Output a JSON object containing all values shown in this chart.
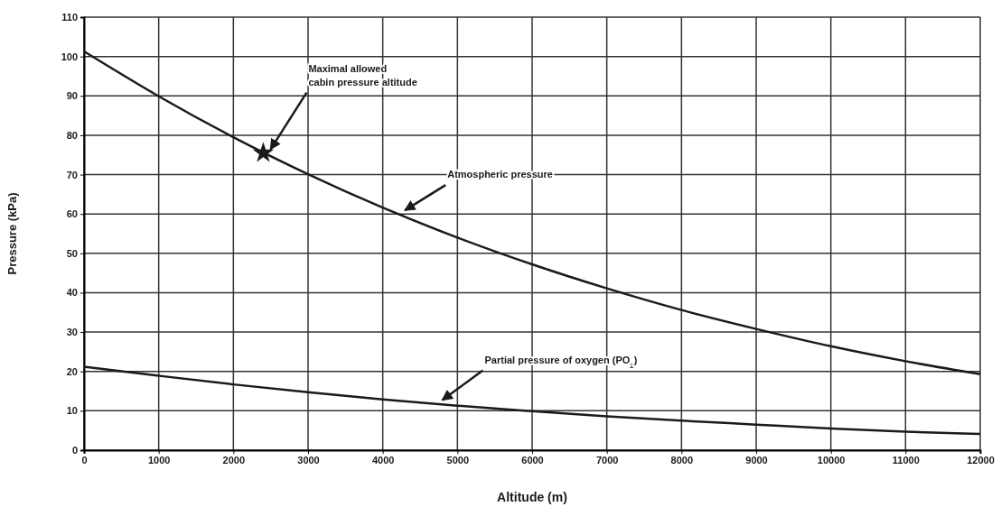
{
  "chart_data": {
    "type": "line",
    "xlabel": "Altitude (m)",
    "ylabel": "Pressure (kPa)",
    "x": [
      0,
      1000,
      2000,
      3000,
      4000,
      5000,
      6000,
      7000,
      8000,
      9000,
      10000,
      11000,
      12000
    ],
    "series": [
      {
        "color": "#1a1a1a",
        "values": [
          101.3,
          89.9,
          79.5,
          70.1,
          61.6,
          54.0,
          47.2,
          41.1,
          35.6,
          30.8,
          26.4,
          22.6,
          19.3
        ]
      },
      {
        "color": "#1a1a1a",
        "values": [
          21.2,
          18.9,
          16.7,
          14.7,
          12.9,
          11.3,
          9.9,
          8.6,
          7.5,
          6.5,
          5.5,
          4.7,
          4.1
        ]
      },
      {
        "type": "scatter",
        "marker": "star",
        "color": "#1a1a1a",
        "x": [
          2400
        ],
        "values": [
          75.5
        ]
      }
    ],
    "xlim": [
      0,
      12000
    ],
    "xticks": [
      0,
      1000,
      2000,
      3000,
      4000,
      5000,
      6000,
      7000,
      8000,
      9000,
      10000,
      11000,
      12000
    ],
    "ylim": [
      0,
      110
    ],
    "yticks": [
      0,
      10,
      20,
      30,
      40,
      50,
      60,
      70,
      80,
      90,
      100,
      110
    ],
    "grid": true,
    "line_style": "solid",
    "annotations": [
      {
        "text": "Maximal allowed\ncabin pressure altitude",
        "x": 2400,
        "y": 75.5
      },
      {
        "text": "Atmospheric pressure",
        "x": 4200,
        "y": 60
      },
      {
        "text": "Partial pressure of oxygen (PO$_{2}$)",
        "x": 4700,
        "y": 11.8
      }
    ]
  }
}
